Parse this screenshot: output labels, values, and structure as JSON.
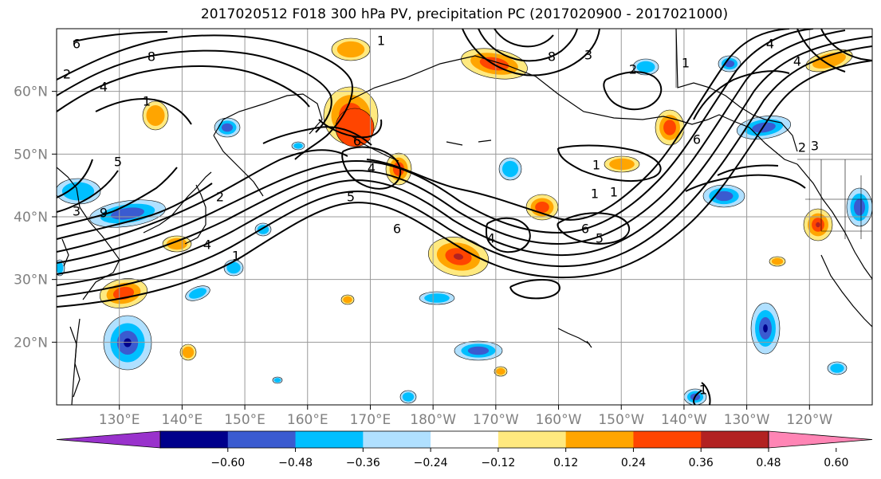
{
  "title": "2017020512 F018 300 hPa PV, precipitation PC (2017020900 - 2017021000)",
  "map": {
    "lat_labels": [
      {
        "text": "60°N",
        "lat": 60
      },
      {
        "text": "50°N",
        "lat": 50
      },
      {
        "text": "40°N",
        "lat": 40
      },
      {
        "text": "30°N",
        "lat": 30
      },
      {
        "text": "20°N",
        "lat": 20
      }
    ],
    "lon_labels": [
      {
        "text": "130°E",
        "lon": 130
      },
      {
        "text": "140°E",
        "lon": 140
      },
      {
        "text": "150°E",
        "lon": 150
      },
      {
        "text": "160°E",
        "lon": 160
      },
      {
        "text": "170°E",
        "lon": 170
      },
      {
        "text": "180°W",
        "lon": 180
      },
      {
        "text": "170°W",
        "lon": 190
      },
      {
        "text": "160°W",
        "lon": 200
      },
      {
        "text": "150°W",
        "lon": 210
      },
      {
        "text": "140°W",
        "lon": 220
      },
      {
        "text": "130°W",
        "lon": 230
      },
      {
        "text": "120°W",
        "lon": 240
      }
    ],
    "extent": {
      "lon_min": 120,
      "lon_max": 250,
      "lat_min": 10,
      "lat_max": 70
    },
    "grid_spacing_deg": 10,
    "contour_labels": [
      "6",
      "8",
      "2",
      "4",
      "1",
      "5",
      "9",
      "3",
      "2",
      "4",
      "6",
      "5",
      "4",
      "6",
      "4",
      "1",
      "1",
      "1",
      "2",
      "3",
      "2",
      "1",
      "5",
      "6",
      "4",
      "3",
      "6",
      "1",
      "1",
      "4",
      "1",
      "8"
    ]
  },
  "colorbar": {
    "ticks": [
      "−0.60",
      "−0.48",
      "−0.36",
      "−0.24",
      "−0.12",
      "0.12",
      "0.24",
      "0.36",
      "0.48",
      "0.60"
    ],
    "colors": [
      "#9932CC",
      "#00008B",
      "#3A5BD0",
      "#00BFFF",
      "#B0E0FF",
      "#FFFFFF",
      "#FFE97F",
      "#FFA500",
      "#FF4500",
      "#B22222",
      "#FF85B5"
    ]
  },
  "palette": {
    "dark_red": "#B22222",
    "red": "#FF4500",
    "orange": "#FFA500",
    "yellow": "#FFE97F",
    "light_blue": "#B0E0FF",
    "cyan": "#00BFFF",
    "royal_blue": "#3A5BD0",
    "navy": "#00008B"
  }
}
